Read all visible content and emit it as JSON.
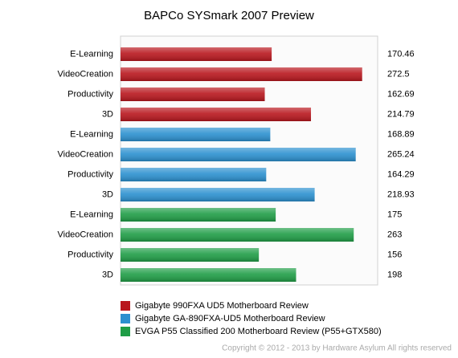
{
  "chart_data": {
    "type": "bar",
    "orientation": "horizontal",
    "title": "BAPCo SYSmark 2007 Preview",
    "categories": [
      "E-Learning",
      "VideoCreation",
      "Productivity",
      "3D"
    ],
    "series": [
      {
        "name": "Gigabyte 990FXA UD5 Motherboard Review",
        "color": "#b8161d",
        "values": [
          170.46,
          272.5,
          162.69,
          214.79
        ]
      },
      {
        "name": "Gigabyte GA-890FXA-UD5 Motherboard Review",
        "color": "#2b90cf",
        "values": [
          168.89,
          265.24,
          164.29,
          218.93
        ]
      },
      {
        "name": "EVGA P55 Classified 200 Motherboard Review (P55+GTX580)",
        "color": "#1f9d46",
        "values": [
          175,
          263,
          156,
          198
        ]
      }
    ],
    "xlim": [
      0,
      290
    ]
  },
  "copyright": "Copyright © 2012 - 2013 by Hardware Asylum All rights reserved"
}
